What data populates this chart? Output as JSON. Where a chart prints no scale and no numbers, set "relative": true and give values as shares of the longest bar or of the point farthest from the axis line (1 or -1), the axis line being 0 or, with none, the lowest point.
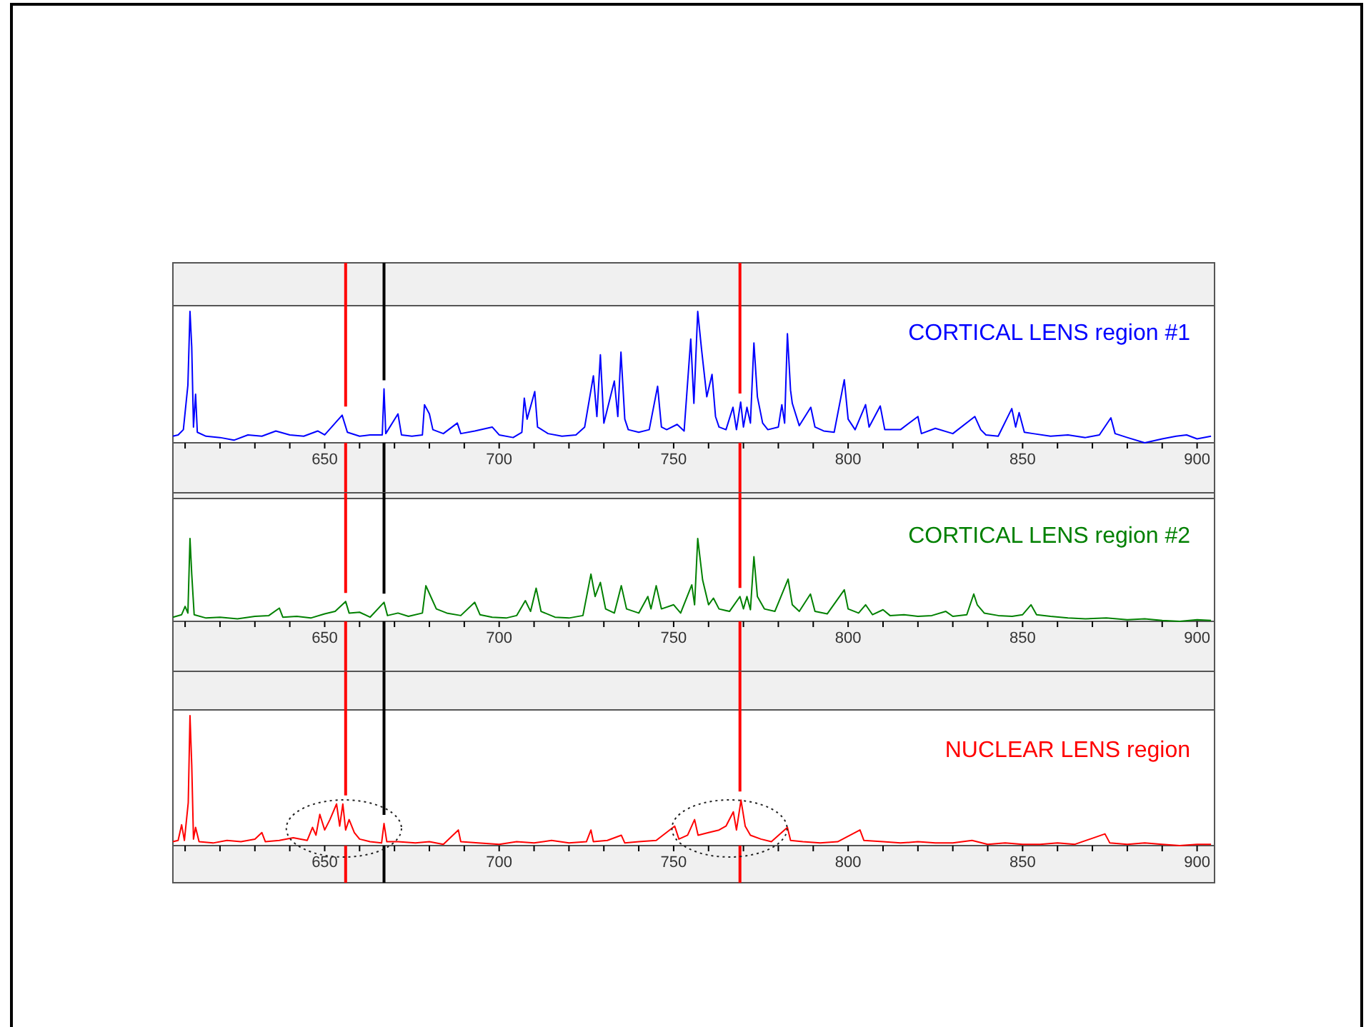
{
  "chart_data": [
    {
      "type": "line",
      "relative": true,
      "xlim": [
        606.5,
        905
      ],
      "xticks": [
        {
          "value": 610,
          "label": null
        },
        {
          "value": 620,
          "label": null
        },
        {
          "value": 630,
          "label": null
        },
        {
          "value": 640,
          "label": null
        },
        650,
        {
          "value": 660,
          "label": null
        },
        {
          "value": 670,
          "label": null
        },
        {
          "value": 680,
          "label": null
        },
        {
          "value": 690,
          "label": null
        },
        700,
        {
          "value": 710,
          "label": null
        },
        {
          "value": 720,
          "label": null
        },
        {
          "value": 730,
          "label": null
        },
        {
          "value": 740,
          "label": null
        },
        750,
        {
          "value": 760,
          "label": null
        },
        {
          "value": 770,
          "label": null
        },
        {
          "value": 780,
          "label": null
        },
        {
          "value": 790,
          "label": null
        },
        800,
        {
          "value": 810,
          "label": null
        },
        {
          "value": 820,
          "label": null
        },
        {
          "value": 830,
          "label": null
        },
        {
          "value": 840,
          "label": null
        },
        850,
        {
          "value": 860,
          "label": null
        },
        {
          "value": 870,
          "label": null
        },
        {
          "value": 880,
          "label": null
        },
        {
          "value": 890,
          "label": null
        },
        900
      ],
      "ref_lines": [
        {
          "axis": "x",
          "value": 656,
          "color": "#ff0000"
        },
        {
          "axis": "x",
          "value": 667,
          "color": "#000000"
        },
        {
          "axis": "x",
          "value": 769,
          "color": "#ff0000"
        }
      ],
      "series": [
        {
          "name": "CORTICAL LENS region #1",
          "color": "#0000ff",
          "x": [
            606.5,
            608,
            609.5,
            610.8,
            611.4,
            611.9,
            612.4,
            613,
            613.5,
            616,
            620,
            624,
            628,
            632,
            636,
            640,
            644,
            648,
            650,
            653,
            655,
            656.5,
            660,
            663,
            666.5,
            667,
            667.5,
            671,
            672,
            675,
            678,
            678.6,
            680,
            681,
            684,
            688,
            689,
            693,
            698,
            700,
            704,
            706.5,
            707.2,
            708,
            710.2,
            711,
            714,
            718,
            722,
            724.5,
            727,
            728,
            729,
            730,
            733,
            734,
            734.9,
            736,
            737,
            740,
            743,
            745.4,
            746.5,
            748,
            751,
            753,
            754.9,
            755.8,
            756.9,
            758,
            759.5,
            761,
            762,
            763,
            765,
            767,
            768,
            769.2,
            770,
            771,
            772,
            773,
            774,
            775.5,
            777,
            780,
            781,
            781.8,
            782.6,
            783.5,
            784,
            786,
            789.3,
            790.5,
            793,
            796,
            798.9,
            800,
            802,
            805,
            806,
            809.2,
            810.5,
            815,
            820,
            821,
            825,
            830,
            836.3,
            838,
            839.5,
            843,
            846.9,
            848,
            849,
            850.5,
            853,
            858,
            863,
            868,
            872,
            875.3,
            876.5,
            880,
            885,
            890,
            894,
            897,
            900,
            904
          ],
          "values": [
            0.05,
            0.06,
            0.1,
            0.44,
            1.0,
            0.73,
            0.12,
            0.37,
            0.08,
            0.05,
            0.04,
            0.02,
            0.06,
            0.05,
            0.09,
            0.06,
            0.05,
            0.09,
            0.06,
            0.15,
            0.21,
            0.08,
            0.05,
            0.06,
            0.06,
            0.41,
            0.07,
            0.22,
            0.06,
            0.05,
            0.06,
            0.29,
            0.22,
            0.1,
            0.07,
            0.15,
            0.07,
            0.09,
            0.12,
            0.06,
            0.04,
            0.08,
            0.34,
            0.18,
            0.39,
            0.12,
            0.07,
            0.05,
            0.06,
            0.12,
            0.51,
            0.2,
            0.67,
            0.15,
            0.47,
            0.2,
            0.69,
            0.18,
            0.1,
            0.08,
            0.1,
            0.43,
            0.12,
            0.1,
            0.14,
            0.09,
            0.79,
            0.3,
            1.0,
            0.71,
            0.35,
            0.52,
            0.2,
            0.12,
            0.1,
            0.27,
            0.1,
            0.31,
            0.12,
            0.27,
            0.15,
            0.76,
            0.35,
            0.15,
            0.1,
            0.12,
            0.29,
            0.15,
            0.83,
            0.4,
            0.3,
            0.13,
            0.27,
            0.12,
            0.09,
            0.08,
            0.48,
            0.18,
            0.1,
            0.29,
            0.12,
            0.28,
            0.1,
            0.1,
            0.2,
            0.07,
            0.11,
            0.07,
            0.2,
            0.1,
            0.06,
            0.05,
            0.26,
            0.12,
            0.23,
            0.08,
            0.07,
            0.05,
            0.06,
            0.04,
            0.06,
            0.19,
            0.07,
            0.04,
            0,
            0.03,
            0.05,
            0.06,
            0.03,
            0.05
          ]
        }
      ]
    },
    {
      "type": "line",
      "relative": true,
      "xlim": [
        606.5,
        905
      ],
      "xticks": [
        {
          "value": 610,
          "label": null
        },
        {
          "value": 620,
          "label": null
        },
        {
          "value": 630,
          "label": null
        },
        {
          "value": 640,
          "label": null
        },
        650,
        {
          "value": 660,
          "label": null
        },
        {
          "value": 670,
          "label": null
        },
        {
          "value": 680,
          "label": null
        },
        {
          "value": 690,
          "label": null
        },
        700,
        {
          "value": 710,
          "label": null
        },
        {
          "value": 720,
          "label": null
        },
        {
          "value": 730,
          "label": null
        },
        {
          "value": 740,
          "label": null
        },
        750,
        {
          "value": 760,
          "label": null
        },
        {
          "value": 770,
          "label": null
        },
        {
          "value": 780,
          "label": null
        },
        {
          "value": 790,
          "label": null
        },
        800,
        {
          "value": 810,
          "label": null
        },
        {
          "value": 820,
          "label": null
        },
        {
          "value": 830,
          "label": null
        },
        {
          "value": 840,
          "label": null
        },
        850,
        {
          "value": 860,
          "label": null
        },
        {
          "value": 870,
          "label": null
        },
        {
          "value": 880,
          "label": null
        },
        {
          "value": 890,
          "label": null
        },
        900
      ],
      "ref_lines": [
        {
          "axis": "x",
          "value": 656,
          "color": "#ff0000"
        },
        {
          "axis": "x",
          "value": 667,
          "color": "#000000"
        },
        {
          "axis": "x",
          "value": 769,
          "color": "#ff0000"
        }
      ],
      "series": [
        {
          "name": "CORTICAL LENS region #2",
          "color": "#008000",
          "x": [
            606.5,
            609,
            610,
            610.8,
            611.4,
            611.9,
            612.6,
            616,
            620,
            625,
            630,
            634,
            637,
            638,
            642,
            646,
            650,
            653,
            656,
            657,
            660,
            663,
            667,
            668,
            671,
            674,
            678,
            679,
            680.6,
            682,
            685,
            689,
            693,
            694.5,
            698,
            702,
            705,
            707.5,
            709,
            710.6,
            712,
            716,
            720,
            724,
            726.3,
            727.5,
            729,
            730.5,
            733,
            735,
            736.5,
            740,
            742.6,
            743.5,
            745,
            746.5,
            750,
            752,
            755.2,
            756,
            756.9,
            758.3,
            760,
            761.4,
            763,
            766,
            769,
            770,
            771,
            772,
            773,
            774,
            776,
            779,
            782.8,
            784,
            786,
            789.2,
            790.5,
            794,
            798.9,
            800,
            803,
            805,
            807,
            810,
            812,
            816,
            820,
            824,
            828,
            830,
            834,
            836,
            837,
            839,
            843,
            847,
            850,
            852.4,
            854,
            858,
            863,
            868,
            874,
            880,
            885,
            890,
            895,
            900,
            904
          ],
          "values": [
            0.05,
            0.08,
            0.18,
            0.1,
            1.0,
            0.57,
            0.08,
            0.04,
            0.05,
            0.03,
            0.06,
            0.07,
            0.16,
            0.05,
            0.06,
            0.04,
            0.09,
            0.12,
            0.24,
            0.1,
            0.11,
            0.05,
            0.23,
            0.07,
            0.1,
            0.06,
            0.1,
            0.43,
            0.28,
            0.15,
            0.1,
            0.07,
            0.23,
            0.08,
            0.05,
            0.04,
            0.07,
            0.25,
            0.12,
            0.4,
            0.12,
            0.05,
            0.04,
            0.07,
            0.57,
            0.3,
            0.47,
            0.15,
            0.1,
            0.43,
            0.15,
            0.1,
            0.3,
            0.15,
            0.43,
            0.15,
            0.2,
            0.1,
            0.44,
            0.2,
            1.0,
            0.5,
            0.2,
            0.28,
            0.15,
            0.12,
            0.3,
            0.15,
            0.3,
            0.14,
            0.78,
            0.3,
            0.15,
            0.12,
            0.51,
            0.2,
            0.12,
            0.33,
            0.12,
            0.09,
            0.38,
            0.15,
            0.1,
            0.2,
            0.08,
            0.14,
            0.07,
            0.08,
            0.06,
            0.07,
            0.12,
            0.06,
            0.08,
            0.33,
            0.2,
            0.1,
            0.07,
            0.06,
            0.08,
            0.2,
            0.08,
            0.06,
            0.04,
            0.03,
            0.04,
            0.02,
            0.03,
            0.01,
            0,
            0.02,
            0.01
          ]
        }
      ]
    },
    {
      "type": "line",
      "relative": true,
      "xlim": [
        606.5,
        905
      ],
      "xticks": [
        {
          "value": 610,
          "label": null
        },
        {
          "value": 620,
          "label": null
        },
        {
          "value": 630,
          "label": null
        },
        {
          "value": 640,
          "label": null
        },
        650,
        {
          "value": 660,
          "label": null
        },
        {
          "value": 670,
          "label": null
        },
        {
          "value": 680,
          "label": null
        },
        {
          "value": 690,
          "label": null
        },
        700,
        {
          "value": 710,
          "label": null
        },
        {
          "value": 720,
          "label": null
        },
        {
          "value": 730,
          "label": null
        },
        {
          "value": 740,
          "label": null
        },
        750,
        {
          "value": 760,
          "label": null
        },
        {
          "value": 770,
          "label": null
        },
        {
          "value": 780,
          "label": null
        },
        {
          "value": 790,
          "label": null
        },
        800,
        {
          "value": 810,
          "label": null
        },
        {
          "value": 820,
          "label": null
        },
        {
          "value": 830,
          "label": null
        },
        {
          "value": 840,
          "label": null
        },
        850,
        {
          "value": 860,
          "label": null
        },
        {
          "value": 870,
          "label": null
        },
        {
          "value": 880,
          "label": null
        },
        {
          "value": 890,
          "label": null
        },
        900
      ],
      "ref_lines": [
        {
          "axis": "x",
          "value": 656,
          "color": "#ff0000"
        },
        {
          "axis": "x",
          "value": 667,
          "color": "#000000"
        },
        {
          "axis": "x",
          "value": 769,
          "color": "#ff0000"
        }
      ],
      "series": [
        {
          "name": "NUCLEAR LENS region",
          "color": "#ff0000",
          "x": [
            606.5,
            608,
            609,
            609.8,
            610.9,
            611.4,
            611.9,
            612.4,
            613,
            614,
            618,
            622,
            626,
            630,
            632,
            633,
            637,
            641,
            645,
            646.5,
            647.5,
            648.6,
            650,
            651.5,
            653.4,
            654.3,
            655.2,
            656,
            657,
            658.5,
            660,
            663,
            666.3,
            667,
            667.8,
            671,
            676,
            680,
            684,
            688.3,
            689,
            694,
            700,
            705,
            710,
            715,
            720,
            725,
            726.3,
            727,
            731,
            735,
            736,
            740,
            745,
            750.3,
            751.5,
            754,
            756,
            757,
            760,
            763,
            765,
            767.1,
            768,
            769.3,
            770.5,
            772,
            775,
            778,
            782.6,
            783.5,
            787,
            792,
            797,
            803.4,
            804.5,
            810,
            815,
            820,
            825,
            830,
            835.5,
            840,
            845,
            850,
            855,
            860,
            865,
            873.6,
            875,
            880,
            885,
            890,
            895,
            900,
            904
          ],
          "values": [
            0.03,
            0.04,
            0.16,
            0.04,
            0.33,
            1.0,
            0.62,
            0.05,
            0.14,
            0.03,
            0.02,
            0.04,
            0.03,
            0.05,
            0.1,
            0.03,
            0.04,
            0.06,
            0.04,
            0.14,
            0.08,
            0.24,
            0.12,
            0.2,
            0.32,
            0.15,
            0.32,
            0.12,
            0.2,
            0.1,
            0.05,
            0.03,
            0.02,
            0.17,
            0.03,
            0.03,
            0.02,
            0.03,
            0.01,
            0.12,
            0.03,
            0.02,
            0.01,
            0.03,
            0.02,
            0.04,
            0.02,
            0.03,
            0.12,
            0.03,
            0.04,
            0.08,
            0.02,
            0.03,
            0.04,
            0.15,
            0.05,
            0.08,
            0.2,
            0.08,
            0.1,
            0.12,
            0.15,
            0.26,
            0.12,
            0.35,
            0.15,
            0.08,
            0.05,
            0.03,
            0.14,
            0.04,
            0.03,
            0.02,
            0.03,
            0.12,
            0.04,
            0.03,
            0.02,
            0.03,
            0.02,
            0.02,
            0.04,
            0.01,
            0.02,
            0.01,
            0.01,
            0.02,
            0.01,
            0.09,
            0.02,
            0.01,
            0.02,
            0.01,
            0,
            0.01,
            0.01
          ]
        }
      ]
    }
  ]
}
